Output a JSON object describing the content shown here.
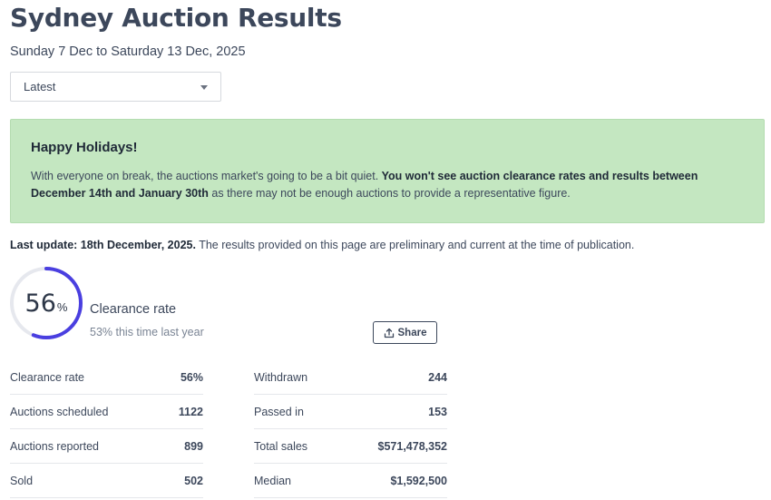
{
  "header": {
    "title": "Sydney Auction Results",
    "date_range": "Sunday 7 Dec to Saturday 13 Dec, 2025"
  },
  "filter": {
    "selected": "Latest"
  },
  "banner": {
    "heading": "Happy Holidays!",
    "text_intro": "With everyone on break, the auctions market's going to be a bit quiet. ",
    "text_bold": "You won't see auction clearance rates and results between December 14th and January 30th",
    "text_outro": " as there may not be enough auctions to provide a representative figure."
  },
  "update": {
    "label": "Last update: 18th December, 2025.",
    "note": " The results provided on this page are preliminary and current at the time of publication."
  },
  "clearance": {
    "value": "56",
    "unit": "%",
    "fraction": 0.56,
    "label": "Clearance rate",
    "last_year": "53% this time last year"
  },
  "share": {
    "label": "Share"
  },
  "colors": {
    "accent": "#4a3fe0",
    "track": "#e6e8ee",
    "banner_bg": "#c4e7c1"
  },
  "stats_left": [
    {
      "label": "Clearance rate",
      "value": "56%"
    },
    {
      "label": "Auctions scheduled",
      "value": "1122"
    },
    {
      "label": "Auctions reported",
      "value": "899"
    },
    {
      "label": "Sold",
      "value": "502"
    }
  ],
  "stats_right": [
    {
      "label": "Withdrawn",
      "value": "244"
    },
    {
      "label": "Passed in",
      "value": "153"
    },
    {
      "label": "Total sales",
      "value": "$571,478,352"
    },
    {
      "label": "Median",
      "value": "$1,592,500"
    }
  ]
}
